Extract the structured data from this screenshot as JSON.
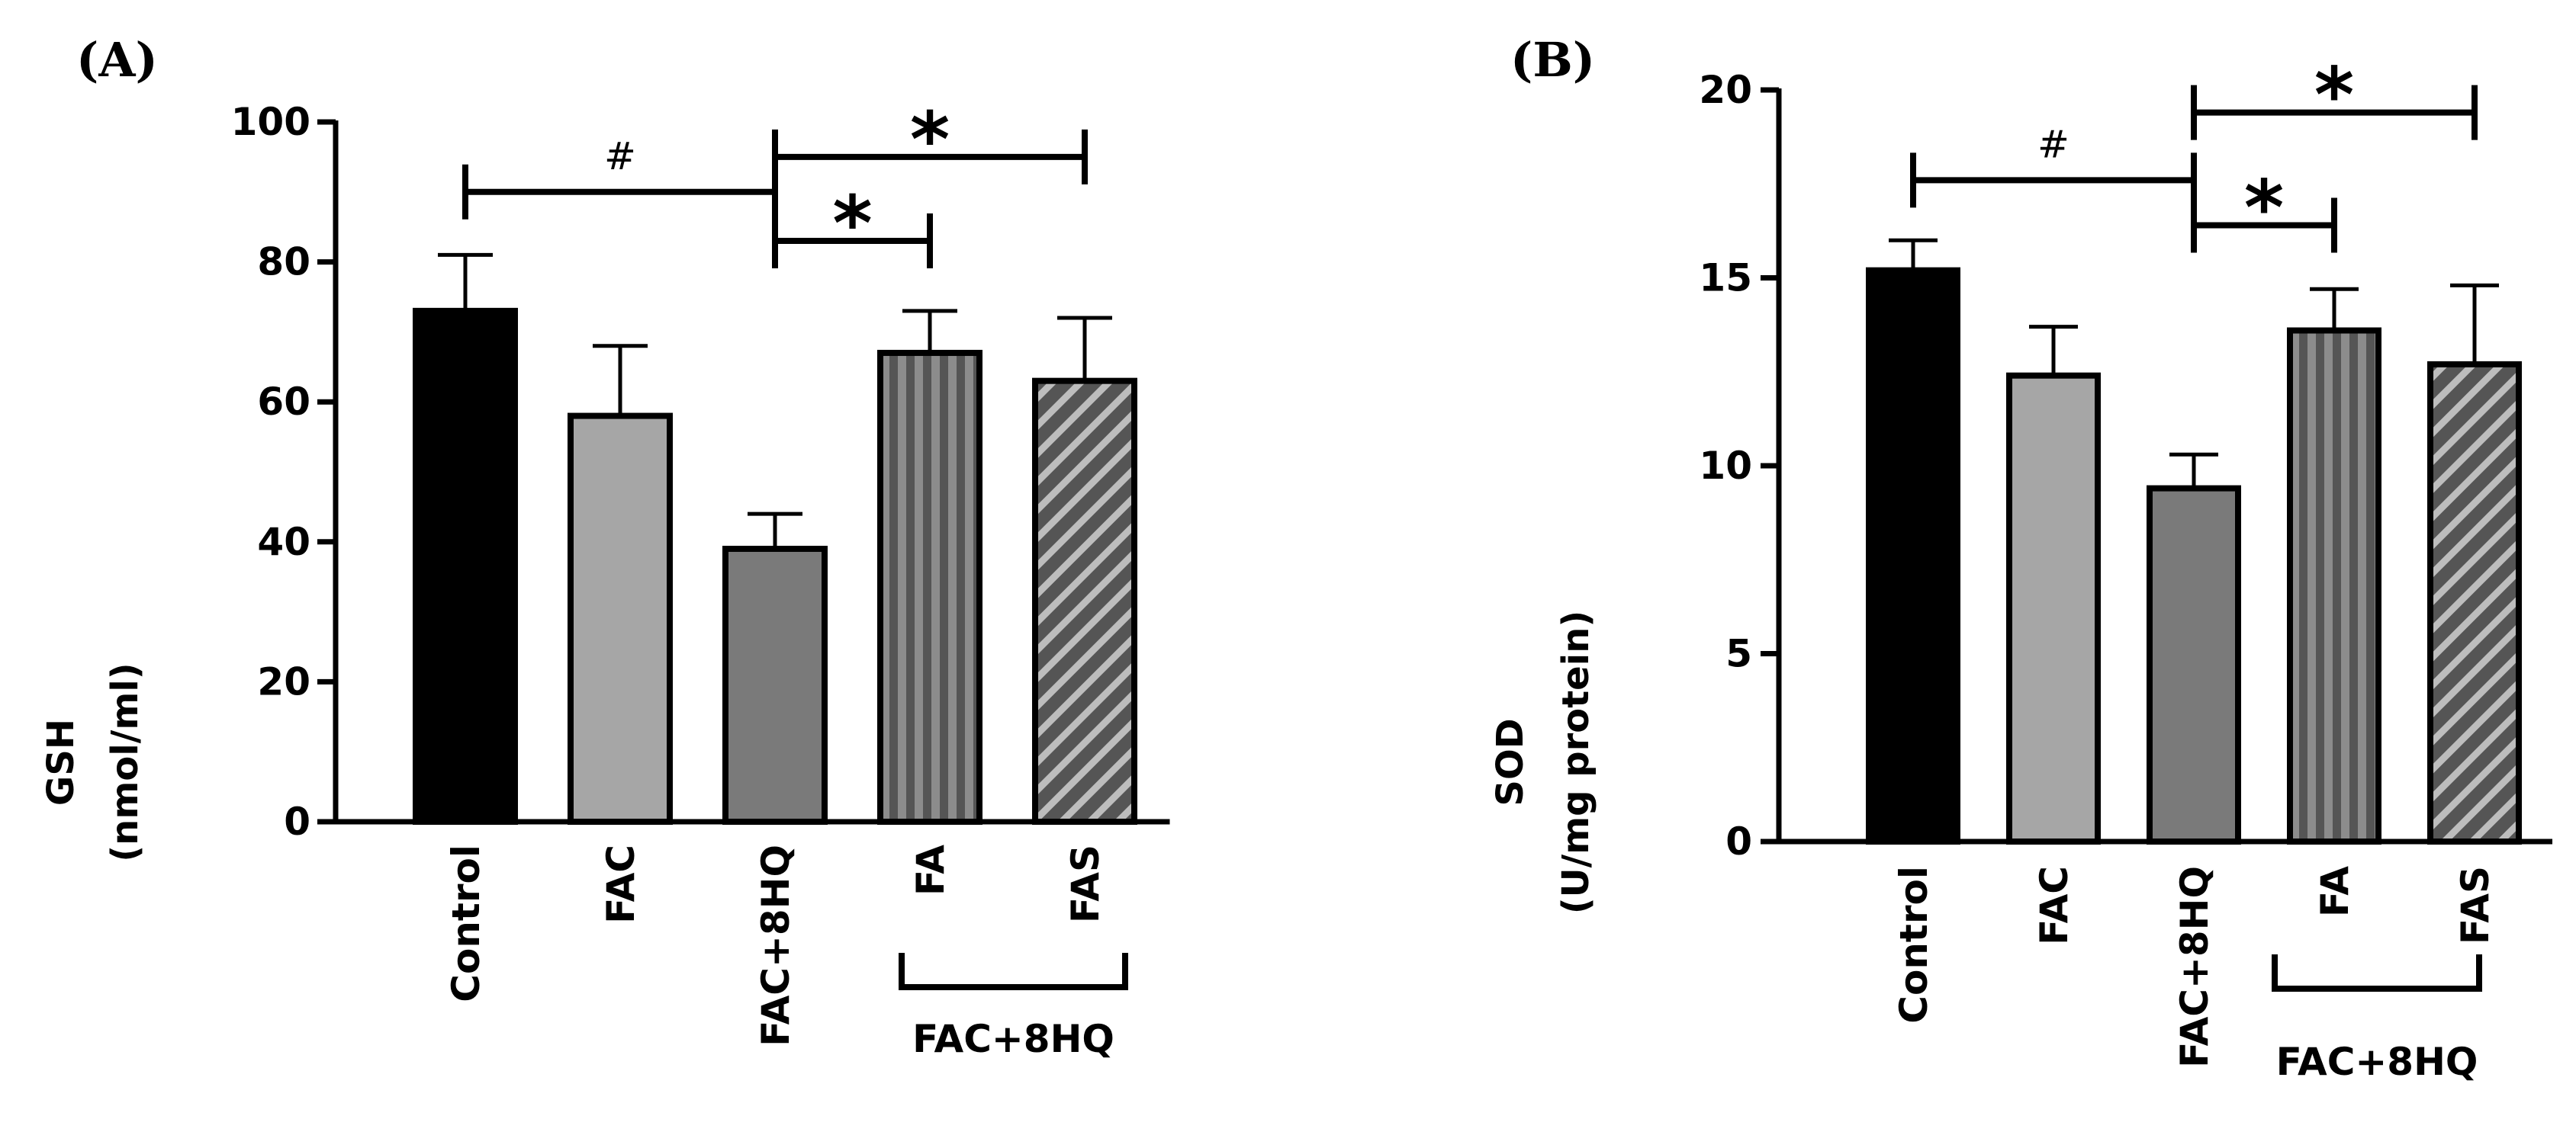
{
  "chart_data": [
    {
      "type": "bar",
      "panel_label": "(A)",
      "ylabel_line1": "GSH",
      "ylabel_line2": "(nmol/ml)",
      "ylim": [
        0,
        100
      ],
      "yticks": [
        "0",
        "20",
        "40",
        "60",
        "80",
        "100"
      ],
      "categories": [
        "Control",
        "FAC",
        "FAC+8HQ",
        "FA",
        "FAS"
      ],
      "values": [
        73,
        58,
        39,
        67,
        63
      ],
      "errors": [
        8,
        10,
        5,
        6,
        9
      ],
      "bar_fills": [
        "solid-black",
        "light-gray",
        "dark-gray",
        "vertical-stripes",
        "diagonal-hatch"
      ],
      "group_label": "FAC+8HQ",
      "significance": [
        {
          "from": 0,
          "to": 2,
          "symbol": "#",
          "level": 90
        },
        {
          "from": 2,
          "to": 3,
          "symbol": "*",
          "level": 83
        },
        {
          "from": 2,
          "to": 4,
          "symbol": "*",
          "level": 95
        }
      ]
    },
    {
      "type": "bar",
      "panel_label": "(B)",
      "ylabel_line1": "SOD",
      "ylabel_line2": "(U/mg protein)",
      "ylim": [
        0,
        20
      ],
      "yticks": [
        "0",
        "5",
        "10",
        "15",
        "20"
      ],
      "categories": [
        "Control",
        "FAC",
        "FAC+8HQ",
        "FA",
        "FAS"
      ],
      "values": [
        15.2,
        12.4,
        9.4,
        13.6,
        12.7
      ],
      "errors": [
        0.8,
        1.3,
        0.9,
        1.1,
        2.1
      ],
      "bar_fills": [
        "solid-black",
        "light-gray",
        "dark-gray",
        "vertical-stripes",
        "diagonal-hatch"
      ],
      "group_label": "FAC+8HQ",
      "significance": [
        {
          "from": 0,
          "to": 2,
          "symbol": "#",
          "level": 17.6
        },
        {
          "from": 2,
          "to": 3,
          "symbol": "*",
          "level": 16.4
        },
        {
          "from": 2,
          "to": 4,
          "symbol": "*",
          "level": 19.4
        }
      ]
    }
  ],
  "colors": {
    "solid_black": "#000000",
    "light_gray": "#a6a6a6",
    "dark_gray": "#7a7a7a",
    "stripe_dark": "#555555",
    "stripe_light": "#8c8c8c",
    "hatch_bg": "#555555",
    "hatch_line": "#bdbdbd"
  }
}
